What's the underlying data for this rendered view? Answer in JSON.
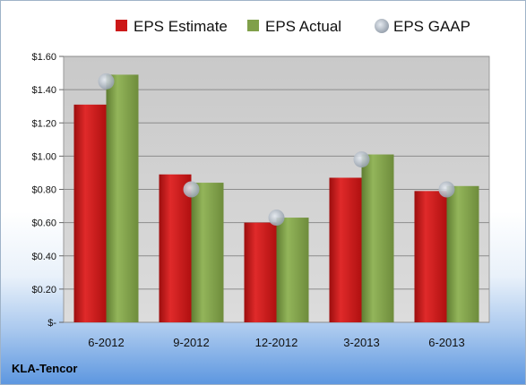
{
  "chart_data": {
    "type": "bar",
    "categories": [
      "6-2012",
      "9-2012",
      "12-2012",
      "3-2013",
      "6-2013"
    ],
    "series": [
      {
        "name": "EPS Estimate",
        "values": [
          1.31,
          0.89,
          0.6,
          0.87,
          0.79
        ],
        "color": "#cc1818",
        "kind": "bar"
      },
      {
        "name": "EPS Actual",
        "values": [
          1.49,
          0.84,
          0.63,
          1.01,
          0.82
        ],
        "color": "#80a04a",
        "kind": "bar"
      },
      {
        "name": "EPS GAAP",
        "values": [
          1.45,
          0.8,
          0.63,
          0.98,
          0.8
        ],
        "color": "#b4bcc6",
        "kind": "marker"
      }
    ],
    "y_ticks": [
      "$-",
      "$0.20",
      "$0.40",
      "$0.60",
      "$0.80",
      "$1.00",
      "$1.20",
      "$1.40",
      "$1.60"
    ],
    "ylim": [
      0,
      1.6
    ],
    "grid": true,
    "legend_position": "top",
    "title": "",
    "xlabel": "",
    "ylabel": ""
  },
  "company": "KLA-Tencor"
}
